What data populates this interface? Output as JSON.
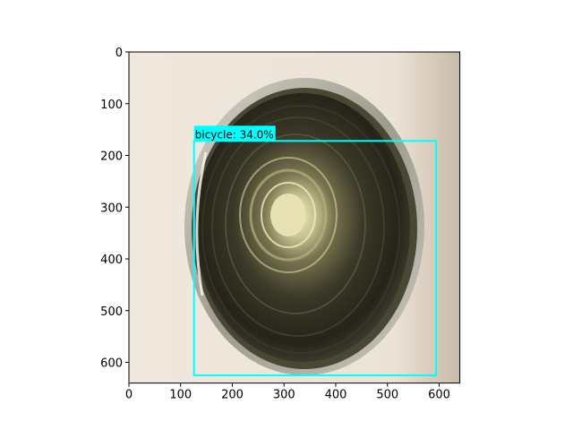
{
  "image": {
    "subject": "inside of an empty metal tin can, viewed from above",
    "palette": {
      "background": "#eee3d6",
      "background_shadow": "#cdbfae",
      "rim": "#b9b5a8",
      "interior_dark": "#2b2a20",
      "interior_mid": "#5f5c43",
      "center": "#e9e3b5"
    }
  },
  "axes": {
    "x_range": [
      0,
      640
    ],
    "y_range": [
      640,
      0
    ],
    "x_ticks": [
      "0",
      "100",
      "200",
      "300",
      "400",
      "500",
      "600"
    ],
    "y_ticks": [
      "0",
      "100",
      "200",
      "300",
      "400",
      "500",
      "600"
    ]
  },
  "detection": {
    "label": "bicycle: 34.0%",
    "box": {
      "x1": 126,
      "y1": 172,
      "x2": 594,
      "y2": 625
    },
    "color": "#00ffff"
  }
}
